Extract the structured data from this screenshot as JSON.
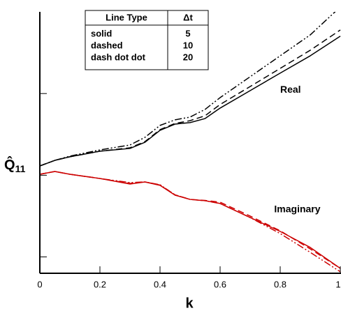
{
  "chart_data": {
    "type": "line",
    "x_label": "k",
    "y_label": "Q̂",
    "y_label_subscript": "11",
    "x": [
      0,
      0.05,
      0.1,
      0.2,
      0.3,
      0.35,
      0.4,
      0.45,
      0.5,
      0.55,
      0.6,
      0.7,
      0.8,
      0.9,
      1
    ],
    "xlim": [
      0,
      1
    ],
    "xticks": [
      0,
      0.2,
      0.4,
      0.6,
      0.8,
      1
    ],
    "ylim": [
      0,
      16
    ],
    "yticks": [
      1,
      6,
      11
    ],
    "series": [
      {
        "group": "Real",
        "style": "solid",
        "color": "#000000",
        "values": [
          6.57,
          6.91,
          7.13,
          7.47,
          7.64,
          8.02,
          8.75,
          9.13,
          9.22,
          9.47,
          10.11,
          11.18,
          12.25,
          13.31,
          14.51
        ]
      },
      {
        "group": "Real",
        "style": "dashed",
        "color": "#000000",
        "values": [
          6.57,
          6.91,
          7.13,
          7.47,
          7.68,
          8.06,
          8.79,
          9.17,
          9.34,
          9.64,
          10.33,
          11.43,
          12.54,
          13.65,
          14.89
        ]
      },
      {
        "group": "Real",
        "style": "dash dot dot",
        "color": "#000000",
        "values": [
          6.57,
          6.91,
          7.17,
          7.55,
          7.85,
          8.32,
          9.05,
          9.39,
          9.56,
          10.03,
          10.75,
          12.03,
          13.31,
          14.59,
          16.3
        ]
      },
      {
        "group": "Imaginary",
        "style": "solid",
        "color": "#cc0000",
        "values": [
          6.06,
          6.23,
          6.06,
          5.8,
          5.46,
          5.59,
          5.38,
          4.78,
          4.52,
          4.44,
          4.27,
          3.41,
          2.56,
          1.58,
          0.3
        ]
      },
      {
        "group": "Imaginary",
        "style": "dashed",
        "color": "#cc0000",
        "values": [
          6.06,
          6.23,
          6.06,
          5.8,
          5.5,
          5.59,
          5.4,
          4.8,
          4.52,
          4.46,
          4.35,
          3.5,
          2.6,
          1.49,
          0.3
        ]
      },
      {
        "group": "Imaginary",
        "style": "dash dot dot",
        "color": "#cc0000",
        "values": [
          6.06,
          6.23,
          6.06,
          5.8,
          5.55,
          5.59,
          5.42,
          4.8,
          4.52,
          4.44,
          4.27,
          3.41,
          2.43,
          1.28,
          0.09
        ]
      }
    ],
    "annotations": [
      {
        "text": "Real",
        "x": 0.8,
        "y": 11.2
      },
      {
        "text": "Imaginary",
        "x": 0.78,
        "y": 3.9
      }
    ],
    "legend": {
      "columns": [
        "Line Type",
        "Δt"
      ],
      "rows": [
        [
          "solid",
          5
        ],
        [
          "dashed",
          10
        ],
        [
          "dash dot dot",
          20
        ]
      ]
    }
  }
}
